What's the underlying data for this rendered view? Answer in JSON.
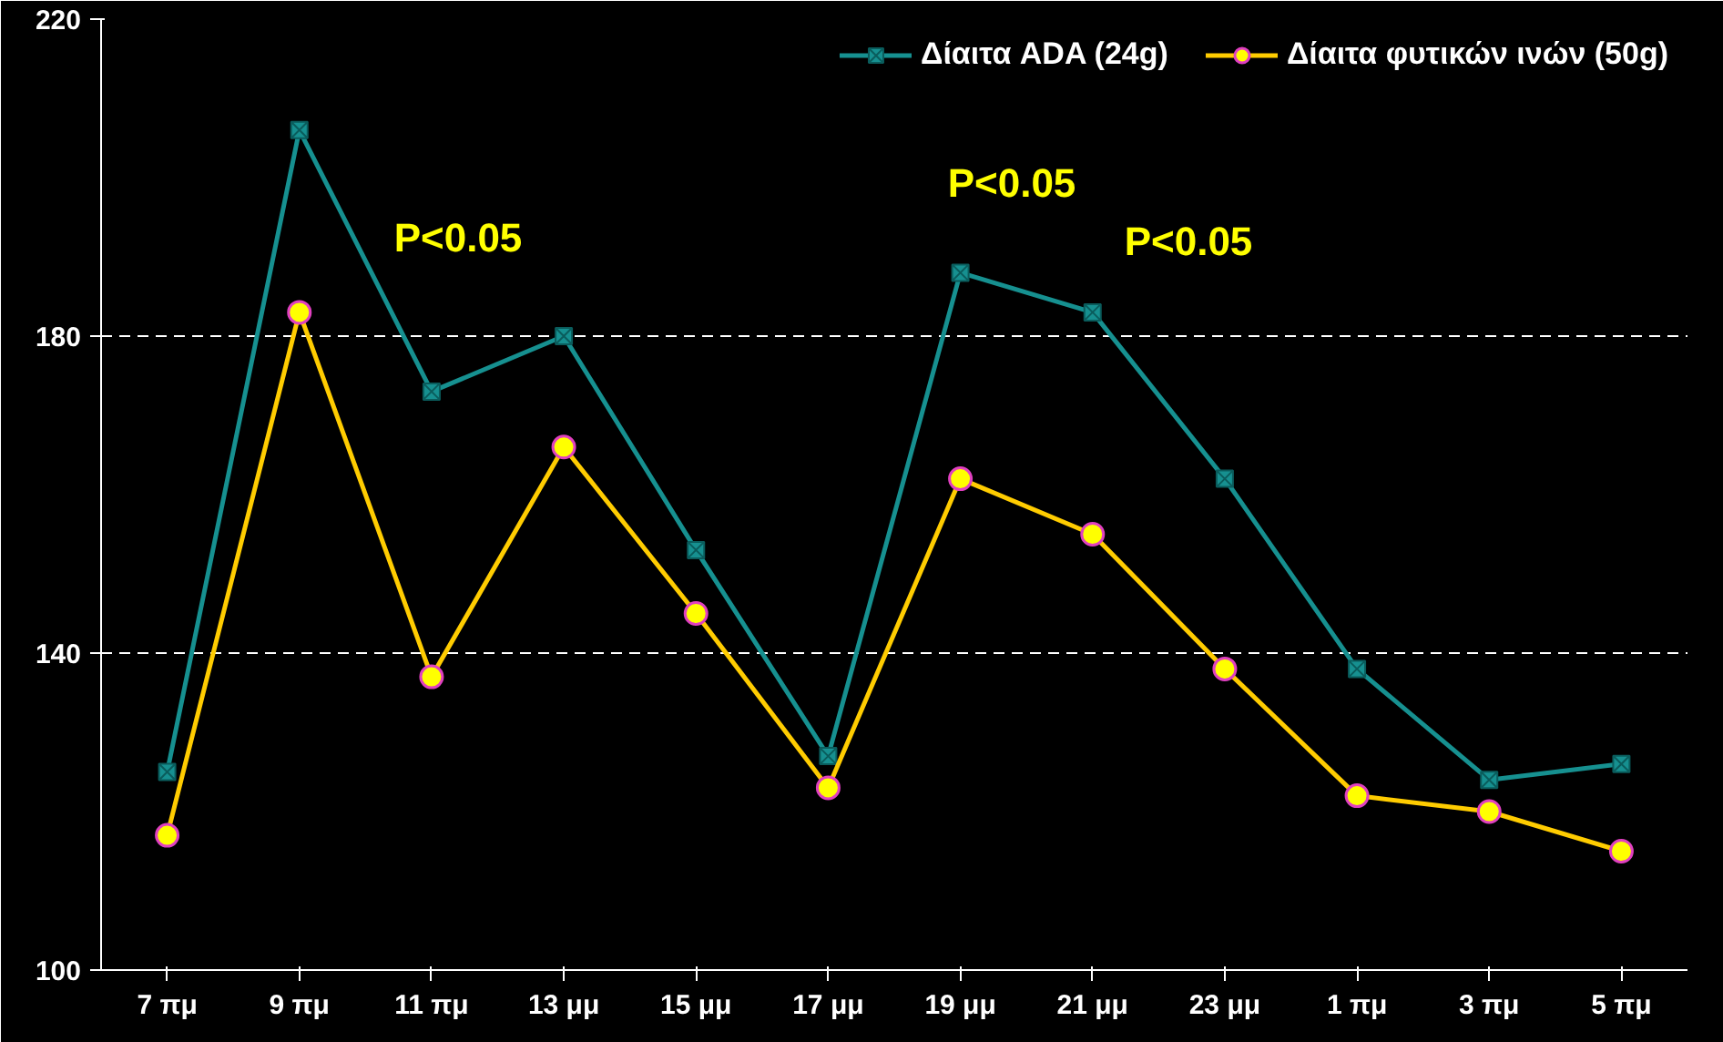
{
  "chart_data": {
    "type": "line",
    "categories": [
      "7 πμ",
      "9 πμ",
      "11 πμ",
      "13 μμ",
      "15 μμ",
      "17 μμ",
      "19 μμ",
      "21 μμ",
      "23 μμ",
      "1 πμ",
      "3 πμ",
      "5 πμ"
    ],
    "series": [
      {
        "name": "Δίαιτα ADA (24g)",
        "color": "#169090",
        "marker": "cross",
        "values": [
          125,
          206,
          173,
          180,
          153,
          127,
          188,
          183,
          162,
          138,
          124,
          126
        ]
      },
      {
        "name": "Δίαιτα φυτικών ινών (50g)",
        "color": "#ffcc00",
        "marker": "circle",
        "values": [
          117,
          183,
          137,
          166,
          145,
          123,
          162,
          155,
          138,
          122,
          120,
          115
        ]
      }
    ],
    "ylim": [
      100,
      220
    ],
    "yticks": [
      100,
      140,
      180,
      220
    ],
    "grid": "y",
    "legend": "top right",
    "annotations": [
      "P<0.05",
      "P<0.05",
      "P<0.05"
    ]
  }
}
